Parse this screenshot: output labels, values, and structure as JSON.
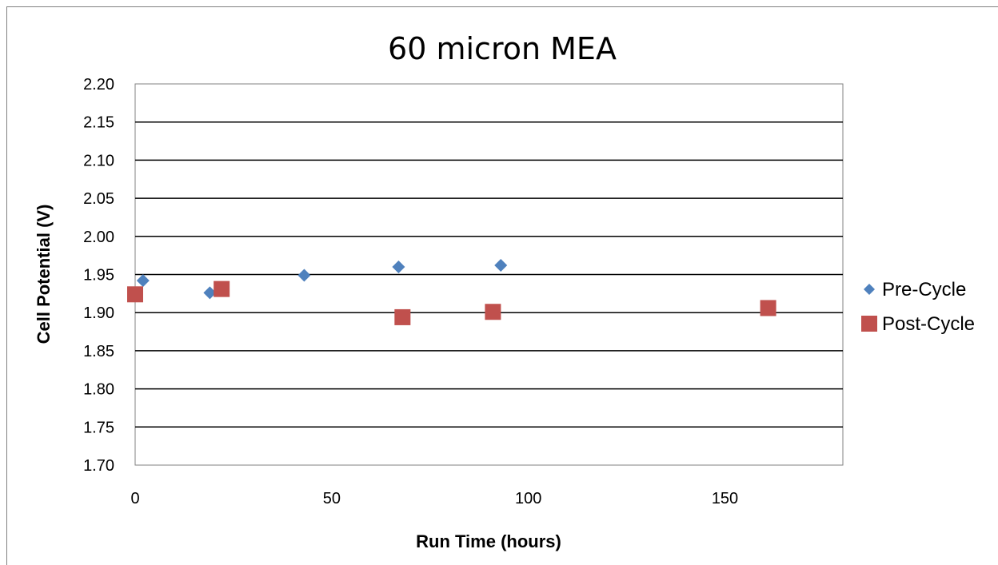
{
  "chart_data": {
    "type": "scatter",
    "title": "60 micron MEA",
    "xlabel": "Run Time (hours)",
    "ylabel": "Cell Potential (V)",
    "xlim": [
      0,
      180
    ],
    "ylim": [
      1.7,
      2.2
    ],
    "xticks": [
      0,
      50,
      100,
      150
    ],
    "xtick_labels": [
      "0",
      "50",
      "100",
      "150"
    ],
    "yticks": [
      1.7,
      1.75,
      1.8,
      1.85,
      1.9,
      1.95,
      2.0,
      2.05,
      2.1,
      2.15,
      2.2
    ],
    "ytick_labels": [
      "1.70",
      "1.75",
      "1.80",
      "1.85",
      "1.90",
      "1.95",
      "2.00",
      "2.05",
      "2.10",
      "2.15",
      "2.20"
    ],
    "grid": "horizontal",
    "legend_position": "right",
    "series": [
      {
        "name": "Pre-Cycle",
        "marker": "diamond",
        "color": "#4F81BD",
        "x": [
          2,
          19,
          43,
          67,
          93
        ],
        "y": [
          1.942,
          1.926,
          1.949,
          1.96,
          1.962
        ]
      },
      {
        "name": "Post-Cycle",
        "marker": "square",
        "color": "#C0504D",
        "x": [
          0,
          22,
          68,
          91,
          161
        ],
        "y": [
          1.924,
          1.931,
          1.894,
          1.901,
          1.906
        ]
      }
    ]
  }
}
